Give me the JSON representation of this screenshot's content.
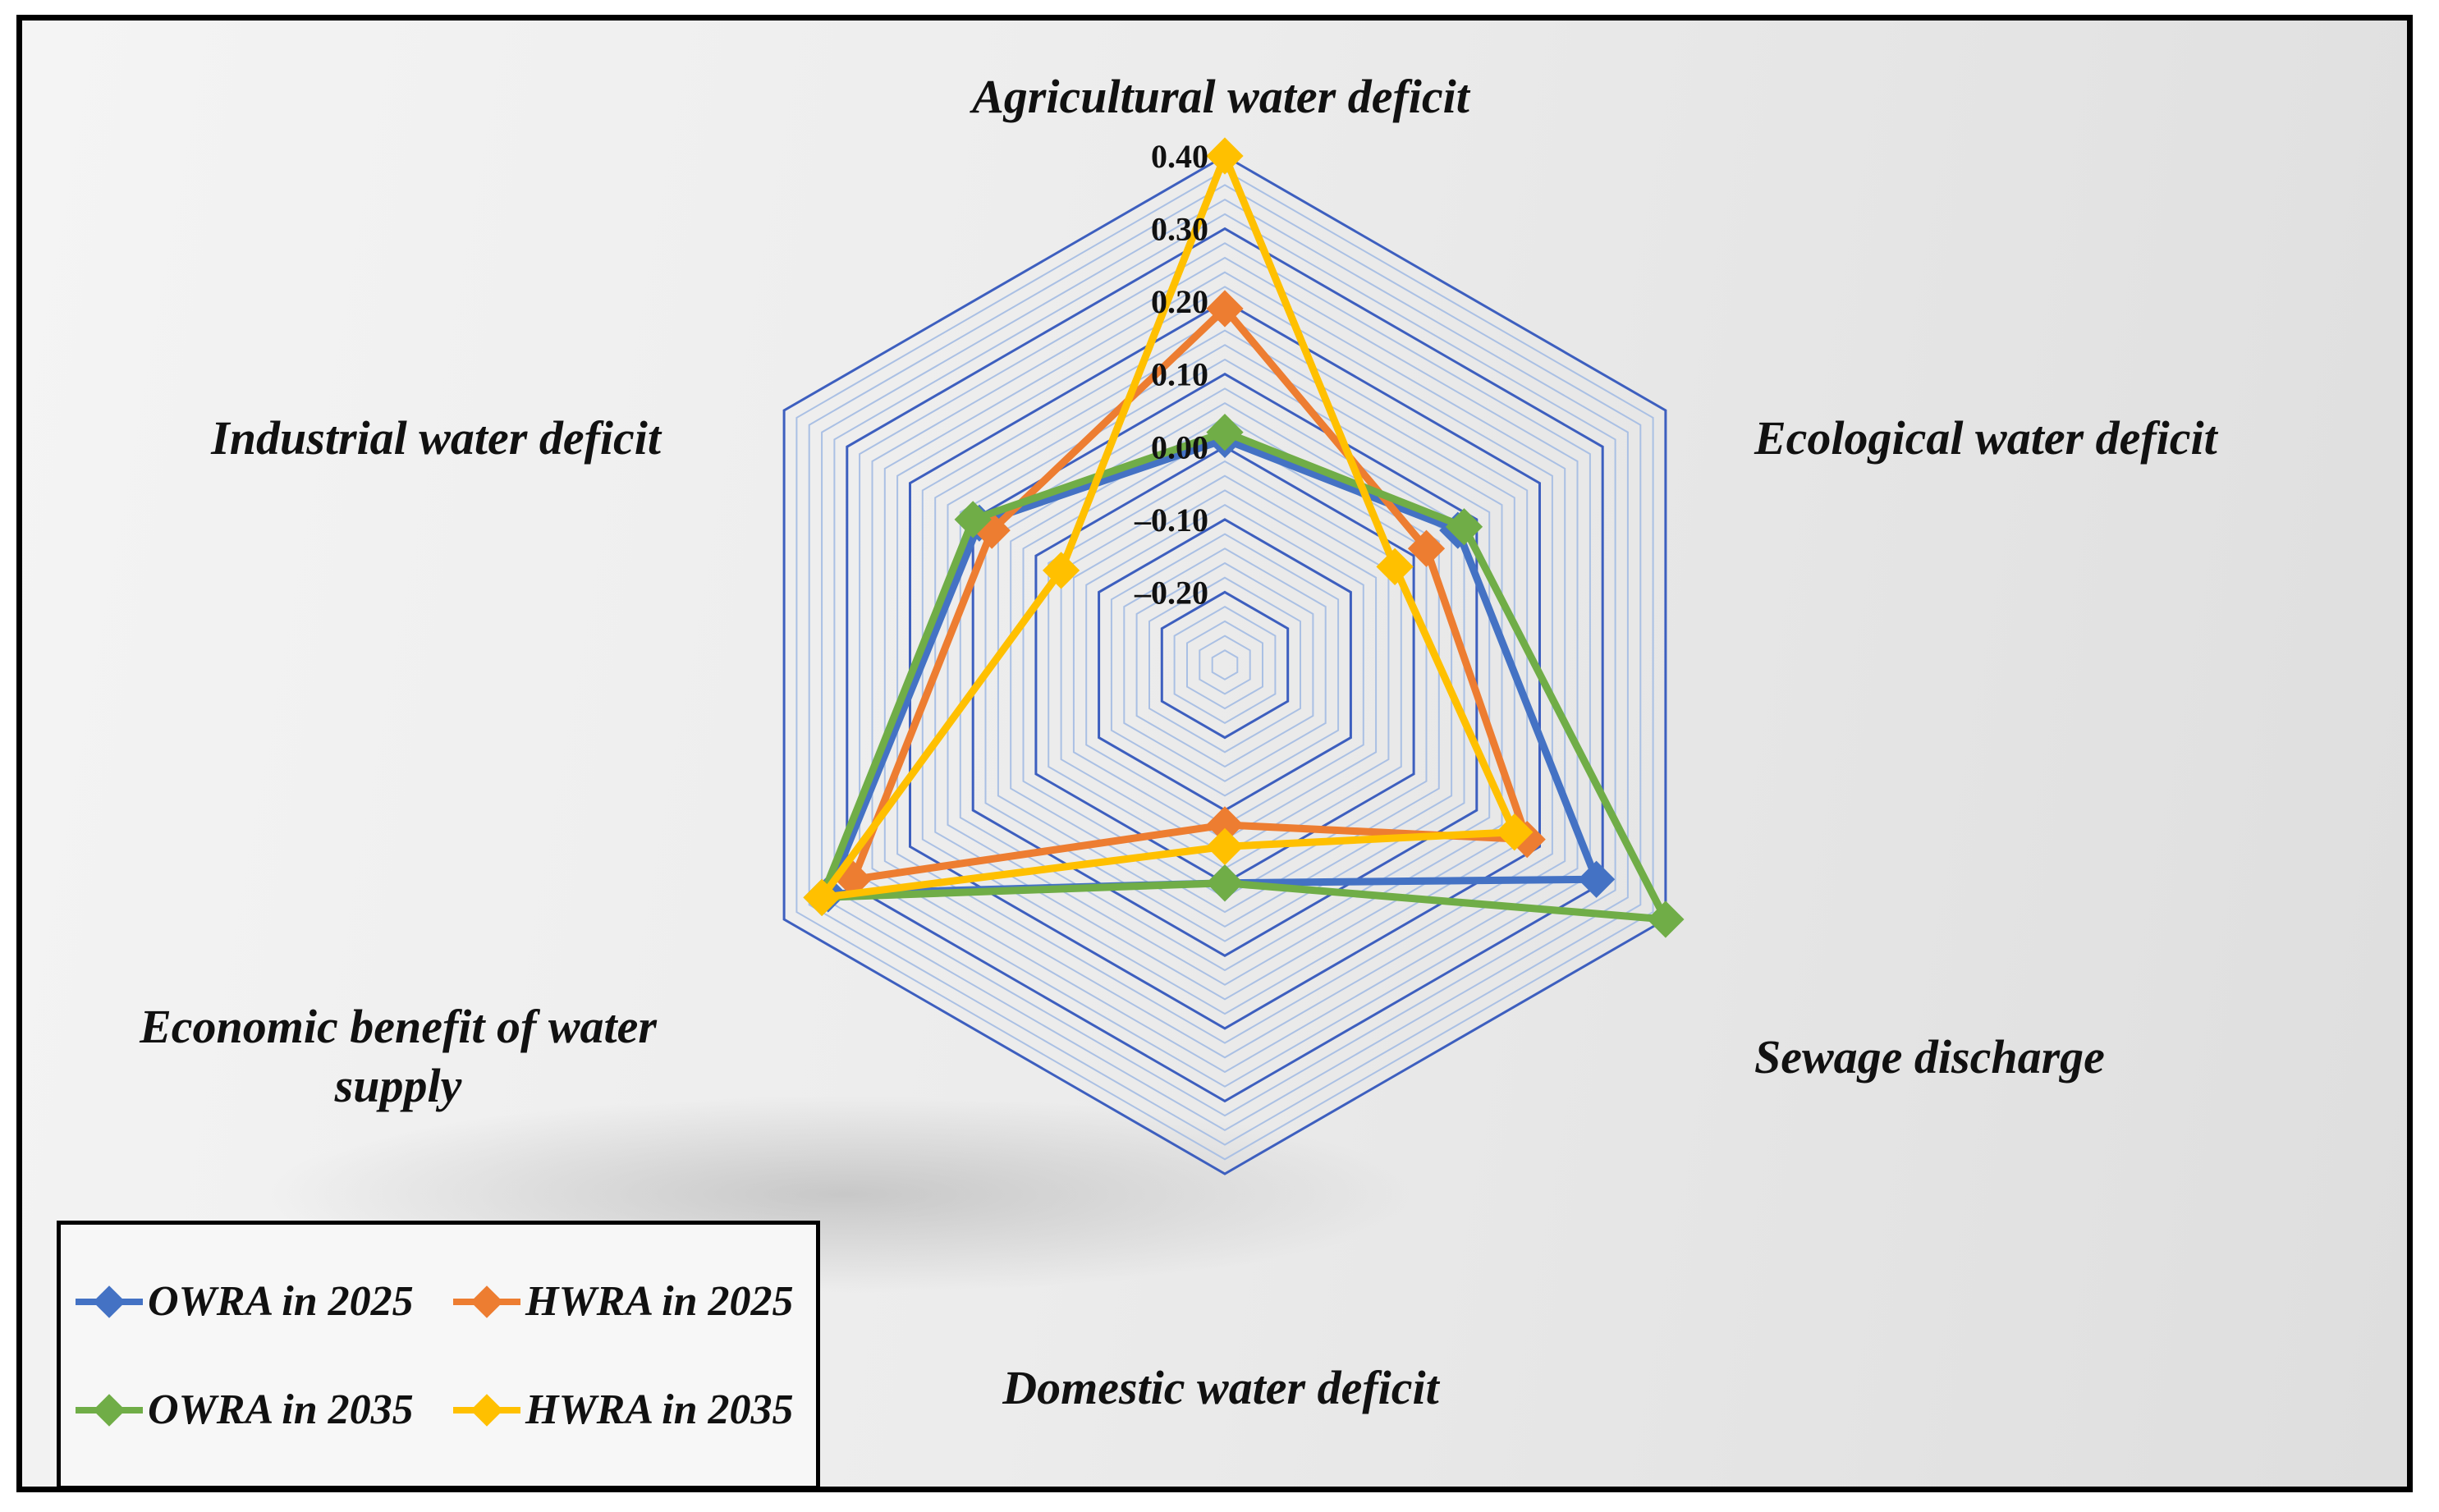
{
  "chart_data": {
    "type": "radar",
    "title": "",
    "categories": [
      "Agricultural water deficit",
      "Ecological water deficit",
      "Sewage discharge",
      "Domestic water deficit",
      "Economic benefit of water supply",
      "Industrial water deficit"
    ],
    "category_labels": [
      [
        "Agricultural water deficit"
      ],
      [
        "Ecological water deficit"
      ],
      [
        "Sewage discharge"
      ],
      [
        "Domestic water deficit"
      ],
      [
        "Economic benefit of water",
        "supply"
      ],
      [
        "Industrial water deficit"
      ]
    ],
    "rlim": [
      -0.3,
      0.4
    ],
    "ticks": [
      0.4,
      0.3,
      0.2,
      0.1,
      0.0,
      -0.1,
      -0.2
    ],
    "tick_labels": [
      "0.40",
      "0.30",
      "0.20",
      "0.10",
      "0.00",
      "–0.10",
      "–0.20"
    ],
    "grid": true,
    "legend_position": "bottom-left",
    "series": [
      {
        "name": "OWRA in 2025",
        "color": "#4472C4",
        "values": [
          0.01,
          0.07,
          0.29,
          0.0,
          0.33,
          0.09
        ]
      },
      {
        "name": "HWRA in 2025",
        "color": "#ED7D31",
        "values": [
          0.19,
          0.02,
          0.18,
          -0.08,
          0.29,
          0.07
        ]
      },
      {
        "name": "OWRA 2035",
        "color": "#70AD47",
        "values": [
          0.02,
          0.08,
          0.4,
          0.0,
          0.34,
          0.1
        ]
      },
      {
        "name": "HWRA in 2035",
        "color": "#FFC000",
        "values": [
          0.4,
          -0.03,
          0.16,
          -0.05,
          0.34,
          -0.04
        ]
      }
    ]
  },
  "legend": {
    "items": [
      {
        "label": "OWRA in 2025",
        "color": "#4472C4"
      },
      {
        "label": "HWRA in 2025",
        "color": "#ED7D31"
      },
      {
        "label": "OWRA in 2035",
        "color": "#70AD47"
      },
      {
        "label": "HWRA in 2035",
        "color": "#FFC000"
      }
    ]
  }
}
